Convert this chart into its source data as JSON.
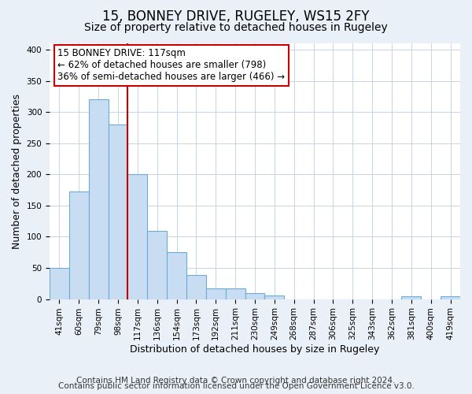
{
  "title": "15, BONNEY DRIVE, RUGELEY, WS15 2FY",
  "subtitle": "Size of property relative to detached houses in Rugeley",
  "xlabel": "Distribution of detached houses by size in Rugeley",
  "ylabel": "Number of detached properties",
  "footer_lines": [
    "Contains HM Land Registry data © Crown copyright and database right 2024.",
    "Contains public sector information licensed under the Open Government Licence v3.0."
  ],
  "bin_labels": [
    "41sqm",
    "60sqm",
    "79sqm",
    "98sqm",
    "117sqm",
    "136sqm",
    "154sqm",
    "173sqm",
    "192sqm",
    "211sqm",
    "230sqm",
    "249sqm",
    "268sqm",
    "287sqm",
    "306sqm",
    "325sqm",
    "343sqm",
    "362sqm",
    "381sqm",
    "400sqm",
    "419sqm"
  ],
  "bar_values": [
    50,
    172,
    320,
    280,
    200,
    110,
    75,
    39,
    17,
    17,
    10,
    6,
    0,
    0,
    0,
    0,
    0,
    0,
    4,
    0,
    4
  ],
  "bar_color": "#c9ddf2",
  "bar_edge_color": "#6aacd8",
  "vline_x_index": 4,
  "vline_color": "#cc0000",
  "ylim": [
    0,
    410
  ],
  "yticks": [
    0,
    50,
    100,
    150,
    200,
    250,
    300,
    350,
    400
  ],
  "annotation_text": "15 BONNEY DRIVE: 117sqm\n← 62% of detached houses are smaller (798)\n36% of semi-detached houses are larger (466) →",
  "box_color": "#ffffff",
  "box_edge_color": "#cc0000",
  "title_fontsize": 12,
  "subtitle_fontsize": 10,
  "label_fontsize": 9,
  "tick_fontsize": 7.5,
  "annotation_fontsize": 8.5,
  "footer_fontsize": 7.5,
  "background_color": "#eaf0f8",
  "plot_background_color": "#ffffff",
  "grid_color": "#c8d4e4"
}
